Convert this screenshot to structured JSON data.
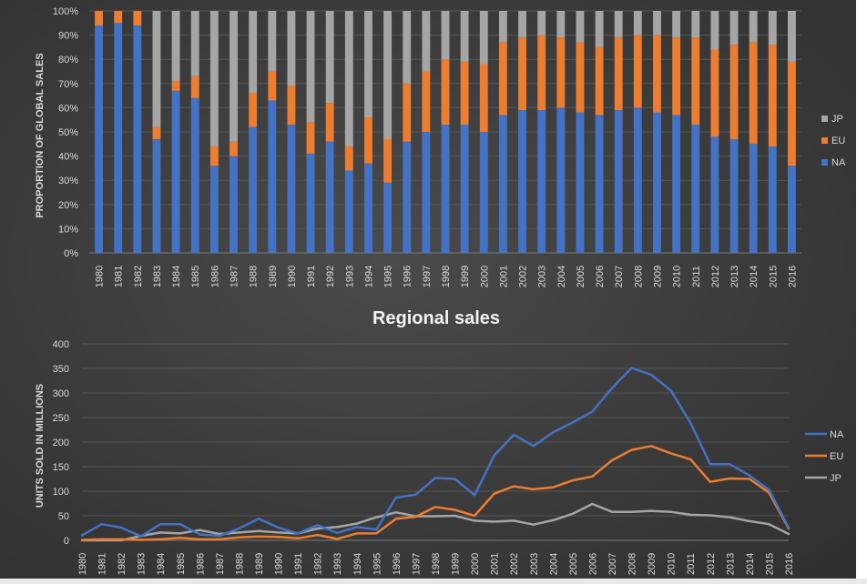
{
  "chart_data": [
    {
      "type": "bar",
      "stacked": true,
      "percent": true,
      "title": "",
      "xlabel": "",
      "ylabel": "PROPORTION OF GLOBAL SALES",
      "ylim": [
        0,
        100
      ],
      "y_ticks": [
        "0%",
        "10%",
        "20%",
        "30%",
        "40%",
        "50%",
        "60%",
        "70%",
        "80%",
        "90%",
        "100%"
      ],
      "legend_position": "right",
      "grid": true,
      "categories": [
        "1980",
        "1981",
        "1982",
        "1983",
        "1984",
        "1985",
        "1986",
        "1987",
        "1988",
        "1989",
        "1990",
        "1991",
        "1992",
        "1993",
        "1994",
        "1995",
        "1996",
        "1997",
        "1998",
        "1999",
        "2000",
        "2001",
        "2002",
        "2003",
        "2004",
        "2005",
        "2006",
        "2007",
        "2008",
        "2009",
        "2010",
        "2011",
        "2012",
        "2013",
        "2014",
        "2015",
        "2016"
      ],
      "series": [
        {
          "name": "NA",
          "color": "#4472c4",
          "values": [
            94,
            95,
            94,
            47,
            67,
            64,
            36,
            40,
            52,
            63,
            53,
            41,
            46,
            34,
            37,
            29,
            46,
            50,
            53,
            53,
            50,
            57,
            59,
            59,
            60,
            58,
            57,
            59,
            60,
            58,
            57,
            53,
            48,
            47,
            45,
            44,
            36
          ]
        },
        {
          "name": "EU",
          "color": "#ed7d31",
          "values": [
            6,
            5,
            6,
            5,
            4,
            9,
            8,
            6,
            14,
            12,
            16,
            13,
            16,
            10,
            19,
            18,
            24,
            25,
            27,
            26,
            28,
            30,
            30,
            31,
            29,
            29,
            28,
            30,
            30,
            32,
            32,
            36,
            36,
            39,
            42,
            42,
            43
          ]
        },
        {
          "name": "JP",
          "color": "#a5a5a5",
          "values": [
            0,
            0,
            0,
            48,
            29,
            27,
            56,
            54,
            34,
            25,
            31,
            46,
            38,
            56,
            44,
            53,
            30,
            25,
            20,
            21,
            22,
            13,
            11,
            10,
            11,
            13,
            15,
            11,
            10,
            10,
            11,
            11,
            16,
            14,
            13,
            14,
            21
          ]
        }
      ]
    },
    {
      "type": "line",
      "title": "Regional sales",
      "xlabel": "",
      "ylabel": "UNITS SOLD IN MILLIONS",
      "ylim": [
        0,
        400
      ],
      "y_ticks": [
        "0",
        "50",
        "100",
        "150",
        "200",
        "250",
        "300",
        "350",
        "400"
      ],
      "legend_position": "right",
      "grid": true,
      "x": [
        "1980",
        "1981",
        "1982",
        "1983",
        "1984",
        "1985",
        "1986",
        "1987",
        "1988",
        "1989",
        "1990",
        "1991",
        "1992",
        "1993",
        "1994",
        "1995",
        "1996",
        "1997",
        "1998",
        "1999",
        "2000",
        "2001",
        "2002",
        "2003",
        "2004",
        "2005",
        "2006",
        "2007",
        "2008",
        "2009",
        "2010",
        "2011",
        "2012",
        "2013",
        "2014",
        "2015",
        "2016"
      ],
      "series": [
        {
          "name": "NA",
          "color": "#4472c4",
          "values": [
            10,
            33,
            26,
            8,
            33,
            33,
            12,
            9,
            24,
            44,
            26,
            14,
            31,
            15,
            27,
            22,
            87,
            93,
            127,
            125,
            92,
            173,
            215,
            192,
            220,
            240,
            262,
            310,
            351,
            337,
            305,
            239,
            155,
            155,
            132,
            103,
            26
          ]
        },
        {
          "name": "EU",
          "color": "#ed7d31",
          "values": [
            1,
            2,
            2,
            1,
            2,
            5,
            2,
            2,
            6,
            8,
            7,
            4,
            11,
            3,
            14,
            14,
            44,
            48,
            68,
            62,
            50,
            95,
            110,
            104,
            108,
            122,
            130,
            163,
            184,
            192,
            177,
            165,
            119,
            126,
            125,
            97,
            24
          ]
        },
        {
          "name": "JP",
          "color": "#a5a5a5",
          "values": [
            0,
            0,
            0,
            9,
            16,
            14,
            21,
            13,
            16,
            19,
            16,
            14,
            24,
            27,
            34,
            47,
            57,
            49,
            49,
            50,
            40,
            38,
            40,
            32,
            41,
            54,
            74,
            58,
            58,
            60,
            58,
            52,
            51,
            47,
            39,
            33,
            13
          ]
        }
      ]
    }
  ],
  "colors": {
    "background": "#3b3b3b",
    "gridline": "#555555",
    "text": "#d9d9d9",
    "title": "#f2f2f2"
  }
}
